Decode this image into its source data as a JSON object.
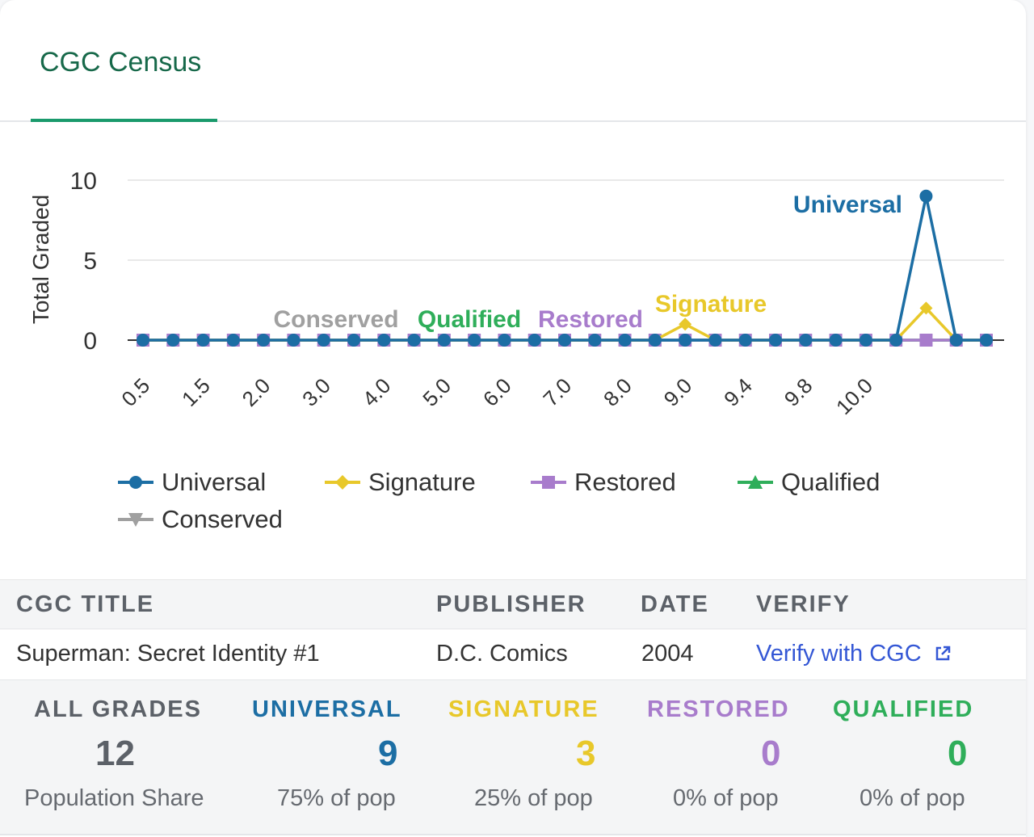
{
  "tab": {
    "label": "CGC Census"
  },
  "chart_data": {
    "type": "line",
    "ylabel": "Total Graded",
    "ylim": [
      0,
      10
    ],
    "yticks": [
      "0",
      "5",
      "10"
    ],
    "x_tick_labels": [
      "0.5",
      "1.5",
      "2.0",
      "3.0",
      "4.0",
      "5.0",
      "6.0",
      "7.0",
      "8.0",
      "9.0",
      "9.4",
      "9.8",
      "10.0"
    ],
    "series": [
      {
        "name": "Universal",
        "color": "#1c6ea4",
        "marker": "circle",
        "values": [
          0,
          0,
          0,
          0,
          0,
          0,
          0,
          0,
          0,
          0,
          0,
          0,
          0,
          0,
          0,
          0,
          0,
          0,
          0,
          0,
          0,
          0,
          0,
          0,
          0,
          0,
          9,
          0,
          0
        ]
      },
      {
        "name": "Signature",
        "color": "#e8c82a",
        "marker": "diamond",
        "values": [
          0,
          0,
          0,
          0,
          0,
          0,
          0,
          0,
          0,
          0,
          0,
          0,
          0,
          0,
          0,
          0,
          0,
          0,
          1,
          0,
          0,
          0,
          0,
          0,
          0,
          0,
          2,
          0,
          0
        ]
      },
      {
        "name": "Restored",
        "color": "#a87ccc",
        "marker": "square",
        "values": [
          0,
          0,
          0,
          0,
          0,
          0,
          0,
          0,
          0,
          0,
          0,
          0,
          0,
          0,
          0,
          0,
          0,
          0,
          0,
          0,
          0,
          0,
          0,
          0,
          0,
          0,
          0,
          0,
          0
        ]
      },
      {
        "name": "Qualified",
        "color": "#2fae5a",
        "marker": "triangle",
        "values": [
          0,
          0,
          0,
          0,
          0,
          0,
          0,
          0,
          0,
          0,
          0,
          0,
          0,
          0,
          0,
          0,
          0,
          0,
          0,
          0,
          0,
          0,
          0,
          0,
          0,
          0,
          0,
          0,
          0
        ]
      },
      {
        "name": "Conserved",
        "color": "#a0a0a0",
        "marker": "triangle-down",
        "values": [
          0,
          0,
          0,
          0,
          0,
          0,
          0,
          0,
          0,
          0,
          0,
          0,
          0,
          0,
          0,
          0,
          0,
          0,
          0,
          0,
          0,
          0,
          0,
          0,
          0,
          0,
          0,
          0,
          0
        ]
      }
    ],
    "annotations": [
      "Universal",
      "Signature",
      "Restored",
      "Qualified",
      "Conserved"
    ],
    "grid": true,
    "legend_placement": "bottom"
  },
  "table": {
    "headers": [
      "CGC TITLE",
      "PUBLISHER",
      "DATE",
      "VERIFY"
    ],
    "row": {
      "title": "Superman: Secret Identity #1",
      "publisher": "D.C. Comics",
      "date": "2004",
      "verify_label": "Verify with CGC"
    }
  },
  "stats": [
    {
      "label": "ALL GRADES",
      "value": "12",
      "sub": "Population Share",
      "color": "#5c6168",
      "value_color": "#5c6168"
    },
    {
      "label": "UNIVERSAL",
      "value": "9",
      "sub": "75% of pop",
      "color": "#1c6ea4",
      "value_color": "#1c6ea4"
    },
    {
      "label": "SIGNATURE",
      "value": "3",
      "sub": "25% of pop",
      "color": "#e8c82a",
      "value_color": "#e8c82a"
    },
    {
      "label": "RESTORED",
      "value": "0",
      "sub": "0% of pop",
      "color": "#a87ccc",
      "value_color": "#a87ccc"
    },
    {
      "label": "QUALIFIED",
      "value": "0",
      "sub": "0% of pop",
      "color": "#2fae5a",
      "value_color": "#2fae5a"
    }
  ],
  "icons": {
    "external_link": "external-link-icon"
  }
}
